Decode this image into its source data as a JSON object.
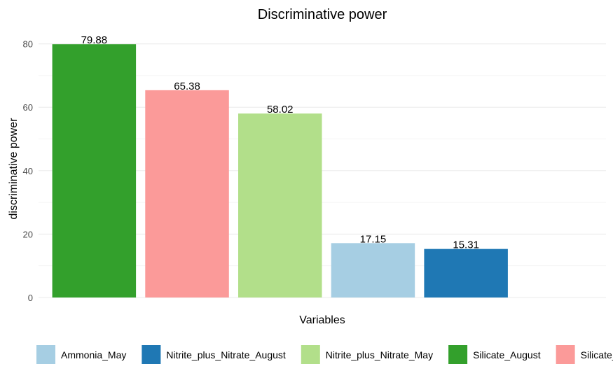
{
  "chart_data": {
    "type": "bar",
    "title": "Discriminative power",
    "xlabel": "Variables",
    "ylabel": "discriminative power",
    "ylim": [
      0,
      85
    ],
    "yticks": [
      0,
      20,
      40,
      60,
      80
    ],
    "grid": true,
    "legend_position": "bottom",
    "categories": [
      "Silicate_August",
      "Silicate_May",
      "Nitrite_plus_Nitrate_May",
      "Ammonia_May",
      "Nitrite_plus_Nitrate_August"
    ],
    "values": [
      79.88,
      65.38,
      58.02,
      17.15,
      15.31
    ],
    "value_labels": [
      "79.88",
      "65.38",
      "58.02",
      "17.15",
      "15.31"
    ],
    "colors": [
      "#33a02c",
      "#fb9a99",
      "#b2df8a",
      "#a6cee3",
      "#1f78b4"
    ],
    "legend": [
      {
        "label": "Ammonia_May",
        "color": "#a6cee3"
      },
      {
        "label": "Nitrite_plus_Nitrate_August",
        "color": "#1f78b4"
      },
      {
        "label": "Nitrite_plus_Nitrate_May",
        "color": "#b2df8a"
      },
      {
        "label": "Silicate_August",
        "color": "#33a02c"
      },
      {
        "label": "Silicate_May",
        "color": "#fb9a99"
      }
    ]
  }
}
